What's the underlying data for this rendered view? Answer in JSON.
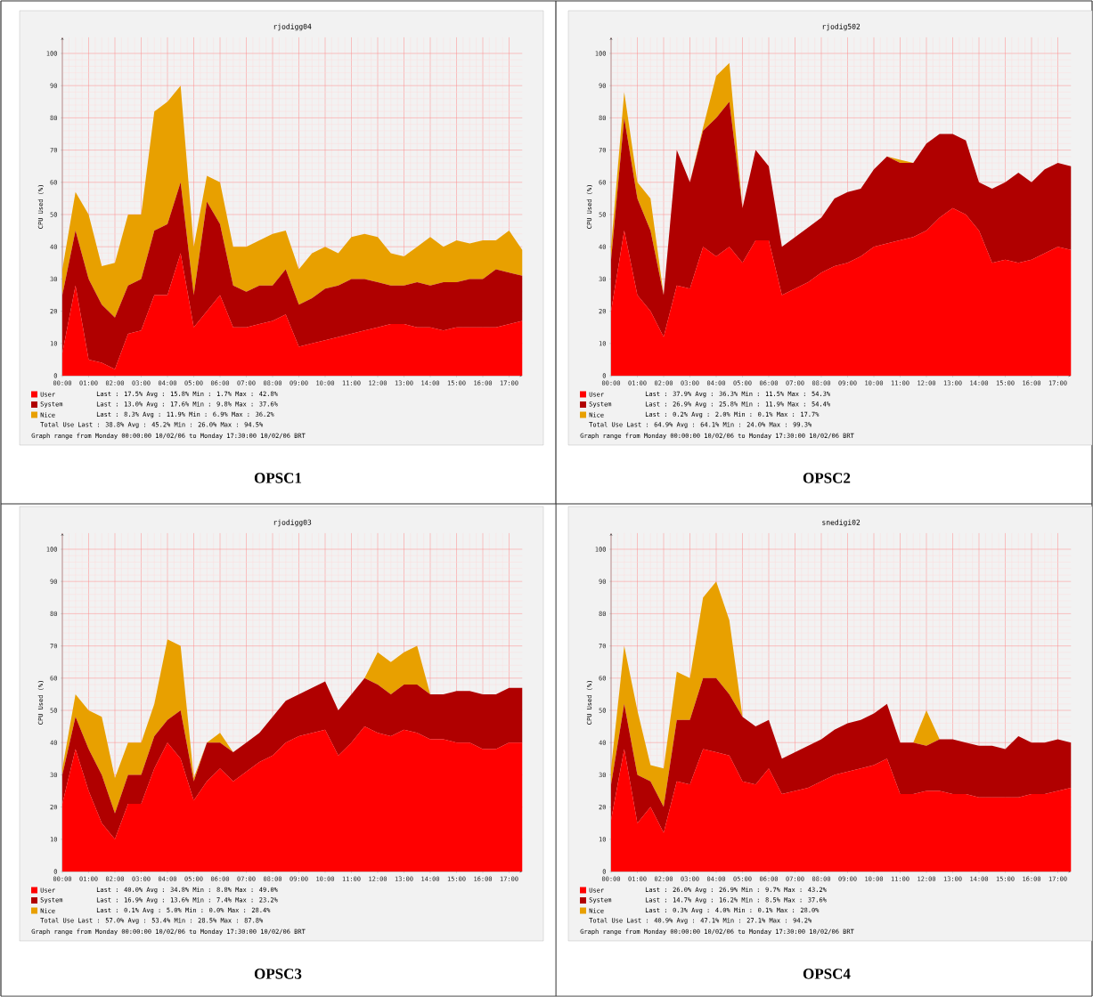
{
  "chart_data": [
    {
      "type": "area",
      "stacked": true,
      "title": "rjodigg04",
      "ylabel": "CPU Used (%)",
      "x": [
        0,
        0.5,
        1,
        1.5,
        2,
        2.5,
        3,
        3.5,
        4,
        4.5,
        5,
        5.5,
        6,
        6.5,
        7,
        7.5,
        8,
        8.5,
        9,
        9.5,
        10,
        10.5,
        11,
        11.5,
        12,
        12.5,
        13,
        13.5,
        14,
        14.5,
        15,
        15.5,
        16,
        16.5,
        17,
        17.5
      ],
      "series": [
        {
          "name": "User",
          "color": "#ff0000",
          "values": [
            7,
            28,
            5,
            4,
            2,
            13,
            14,
            25,
            25,
            38,
            15,
            20,
            25,
            15,
            15,
            16,
            17,
            19,
            9,
            10,
            11,
            12,
            13,
            14,
            15,
            16,
            16,
            15,
            15,
            14,
            15,
            15,
            15,
            15,
            16,
            17
          ]
        },
        {
          "name": "System",
          "color": "#b00000",
          "values": [
            18,
            17,
            25,
            18,
            16,
            15,
            16,
            20,
            22,
            22,
            10,
            34,
            22,
            13,
            11,
            12,
            11,
            14,
            13,
            14,
            16,
            16,
            17,
            16,
            14,
            12,
            12,
            14,
            13,
            15,
            14,
            15,
            15,
            18,
            16,
            14
          ]
        },
        {
          "name": "Nice",
          "color": "#e8a000",
          "values": [
            8,
            12,
            20,
            12,
            17,
            22,
            20,
            37,
            38,
            30,
            15,
            8,
            13,
            12,
            14,
            14,
            16,
            12,
            11,
            14,
            13,
            10,
            13,
            14,
            14,
            10,
            9,
            11,
            15,
            11,
            13,
            11,
            12,
            9,
            13,
            8
          ]
        }
      ],
      "xlim": [
        0,
        17.5
      ],
      "ylim": [
        0,
        105
      ],
      "xticks": [
        {
          "value": 0,
          "label": "00:00"
        },
        {
          "value": 1,
          "label": "01:00"
        },
        {
          "value": 2,
          "label": "02:00"
        },
        {
          "value": 3,
          "label": "03:00"
        },
        {
          "value": 4,
          "label": "04:00"
        },
        {
          "value": 5,
          "label": "05:00"
        },
        {
          "value": 6,
          "label": "06:00"
        },
        {
          "value": 7,
          "label": "07:00"
        },
        {
          "value": 8,
          "label": "08:00"
        },
        {
          "value": 9,
          "label": "09:00"
        },
        {
          "value": 10,
          "label": "10:00"
        },
        {
          "value": 11,
          "label": "11:00"
        },
        {
          "value": 12,
          "label": "12:00"
        },
        {
          "value": 13,
          "label": "13:00"
        },
        {
          "value": 14,
          "label": "14:00"
        },
        {
          "value": 15,
          "label": "15:00"
        },
        {
          "value": 16,
          "label": "16:00"
        },
        {
          "value": 17,
          "label": "17:00"
        }
      ],
      "yticks": [
        0,
        10,
        20,
        30,
        40,
        50,
        60,
        70,
        80,
        90,
        100
      ],
      "grid": true,
      "legend": "bottom",
      "annotations": [
        "Last : 17.5%  Avg : 15.8%  Min : 1.7%  Max : 42.8%",
        "Last : 13.0%  Avg : 17.6%  Min : 9.8%  Max : 37.6%",
        "Last : 8.3%  Avg : 11.9%  Min : 6.9%  Max : 36.2%",
        "Total Use  Last : 38.8%  Avg : 45.2%  Min : 26.0%  Max : 94.5%",
        "Graph range from Monday 00:00:00 10/02/06 to Monday 17:30:00 10/02/06 BRT",
        "OPSC1"
      ]
    },
    {
      "type": "area",
      "stacked": true,
      "title": "rjodig502",
      "ylabel": "CPU Used (%)",
      "x": [
        0,
        0.5,
        1,
        1.5,
        2,
        2.5,
        3,
        3.5,
        4,
        4.5,
        5,
        5.5,
        6,
        6.5,
        7,
        7.5,
        8,
        8.5,
        9,
        9.5,
        10,
        10.5,
        11,
        11.5,
        12,
        12.5,
        13,
        13.5,
        14,
        14.5,
        15,
        15.5,
        16,
        16.5,
        17,
        17.5
      ],
      "series": [
        {
          "name": "User",
          "color": "#ff0000",
          "values": [
            20,
            45,
            25,
            20,
            12,
            28,
            27,
            40,
            37,
            40,
            35,
            42,
            42,
            25,
            27,
            29,
            32,
            34,
            35,
            37,
            40,
            41,
            42,
            43,
            45,
            49,
            52,
            50,
            45,
            35,
            36,
            35,
            36,
            38,
            40,
            39
          ]
        },
        {
          "name": "System",
          "color": "#b00000",
          "values": [
            16,
            35,
            30,
            25,
            13,
            42,
            33,
            36,
            43,
            45,
            17,
            28,
            23,
            15,
            16,
            17,
            17,
            21,
            22,
            21,
            24,
            27,
            24,
            23,
            27,
            26,
            23,
            23,
            15,
            23,
            24,
            28,
            24,
            26,
            26,
            26
          ]
        },
        {
          "name": "Nice",
          "color": "#e8a000",
          "values": [
            4,
            8,
            5,
            10,
            0,
            0,
            0,
            1,
            13,
            12,
            0,
            0,
            0,
            0,
            0,
            0,
            0,
            0,
            0,
            0,
            0,
            0,
            1,
            0,
            0,
            0,
            0,
            0,
            0,
            0,
            0,
            0,
            0,
            0,
            0,
            0
          ]
        }
      ],
      "xlim": [
        0,
        17.5
      ],
      "ylim": [
        0,
        105
      ],
      "xticks": [
        {
          "value": 0,
          "label": "00:00"
        },
        {
          "value": 1,
          "label": "01:00"
        },
        {
          "value": 2,
          "label": "02:00"
        },
        {
          "value": 3,
          "label": "03:00"
        },
        {
          "value": 4,
          "label": "04:00"
        },
        {
          "value": 5,
          "label": "05:00"
        },
        {
          "value": 6,
          "label": "06:00"
        },
        {
          "value": 7,
          "label": "07:00"
        },
        {
          "value": 8,
          "label": "08:00"
        },
        {
          "value": 9,
          "label": "09:00"
        },
        {
          "value": 10,
          "label": "10:00"
        },
        {
          "value": 11,
          "label": "11:00"
        },
        {
          "value": 12,
          "label": "12:00"
        },
        {
          "value": 13,
          "label": "13:00"
        },
        {
          "value": 14,
          "label": "14:00"
        },
        {
          "value": 15,
          "label": "15:00"
        },
        {
          "value": 16,
          "label": "16:00"
        },
        {
          "value": 17,
          "label": "17:00"
        }
      ],
      "yticks": [
        0,
        10,
        20,
        30,
        40,
        50,
        60,
        70,
        80,
        90,
        100
      ],
      "grid": true,
      "legend": "bottom",
      "annotations": [
        "Last : 37.9%  Avg : 36.3%  Min : 11.5%  Max : 54.3%",
        "Last : 26.9%  Avg : 25.8%  Min : 11.9%  Max : 54.4%",
        "Last : 0.2%  Avg : 2.0%  Min : 0.1%  Max : 17.7%",
        "Total Use  Last : 64.9%  Avg : 64.1%  Min : 24.0%  Max : 99.3%",
        "Graph range from Monday 00:00:00 10/02/06 to Monday 17:30:00 10/02/06 BRT",
        "OPSC2"
      ]
    },
    {
      "type": "area",
      "stacked": true,
      "title": "rjodigg03",
      "ylabel": "CPU Used (%)",
      "x": [
        0,
        0.5,
        1,
        1.5,
        2,
        2.5,
        3,
        3.5,
        4,
        4.5,
        5,
        5.5,
        6,
        6.5,
        7,
        7.5,
        8,
        8.5,
        9,
        9.5,
        10,
        10.5,
        11,
        11.5,
        12,
        12.5,
        13,
        13.5,
        14,
        14.5,
        15,
        15.5,
        16,
        16.5,
        17,
        17.5
      ],
      "series": [
        {
          "name": "User",
          "color": "#ff0000",
          "values": [
            21,
            38,
            25,
            15,
            10,
            21,
            21,
            32,
            40,
            35,
            22,
            28,
            32,
            28,
            31,
            34,
            36,
            40,
            42,
            43,
            44,
            36,
            40,
            45,
            43,
            42,
            44,
            43,
            41,
            41,
            40,
            40,
            38,
            38,
            40,
            40
          ]
        },
        {
          "name": "System",
          "color": "#b00000",
          "values": [
            9,
            10,
            13,
            15,
            8,
            9,
            9,
            10,
            7,
            15,
            6,
            12,
            8,
            9,
            9,
            9,
            12,
            13,
            13,
            14,
            15,
            14,
            15,
            15,
            15,
            13,
            14,
            15,
            14,
            14,
            16,
            16,
            17,
            17,
            17,
            17
          ]
        },
        {
          "name": "Nice",
          "color": "#e8a000",
          "values": [
            2,
            7,
            12,
            18,
            11,
            10,
            10,
            10,
            25,
            20,
            1,
            0,
            3,
            0,
            0,
            0,
            0,
            0,
            0,
            0,
            0,
            0,
            0,
            0,
            10,
            10,
            10,
            12,
            0,
            0,
            0,
            0,
            0,
            0,
            0,
            0
          ]
        }
      ],
      "xlim": [
        0,
        17.5
      ],
      "ylim": [
        0,
        105
      ],
      "xticks": [
        {
          "value": 0,
          "label": "00:00"
        },
        {
          "value": 1,
          "label": "01:00"
        },
        {
          "value": 2,
          "label": "02:00"
        },
        {
          "value": 3,
          "label": "03:00"
        },
        {
          "value": 4,
          "label": "04:00"
        },
        {
          "value": 5,
          "label": "05:00"
        },
        {
          "value": 6,
          "label": "06:00"
        },
        {
          "value": 7,
          "label": "07:00"
        },
        {
          "value": 8,
          "label": "08:00"
        },
        {
          "value": 9,
          "label": "09:00"
        },
        {
          "value": 10,
          "label": "10:00"
        },
        {
          "value": 11,
          "label": "11:00"
        },
        {
          "value": 12,
          "label": "12:00"
        },
        {
          "value": 13,
          "label": "13:00"
        },
        {
          "value": 14,
          "label": "14:00"
        },
        {
          "value": 15,
          "label": "15:00"
        },
        {
          "value": 16,
          "label": "16:00"
        },
        {
          "value": 17,
          "label": "17:00"
        }
      ],
      "yticks": [
        0,
        10,
        20,
        30,
        40,
        50,
        60,
        70,
        80,
        90,
        100
      ],
      "grid": true,
      "legend": "bottom",
      "annotations": [
        "Last : 40.0%  Avg : 34.8%  Min : 8.8%  Max : 49.0%",
        "Last : 16.9%  Avg : 13.6%  Min : 7.4%  Max : 23.2%",
        "Last : 0.1%  Avg : 5.0%  Min : 0.0%  Max : 28.4%",
        "Total Use  Last : 57.0%  Avg : 53.4%  Min : 28.5%  Max : 87.8%",
        "Graph range from Monday 00:00:00 10/02/06 to Monday 17:30:00 10/02/06 BRT",
        "OPSC3"
      ]
    },
    {
      "type": "area",
      "stacked": true,
      "title": "snedigi02",
      "ylabel": "CPU Used (%)",
      "x": [
        0,
        0.5,
        1,
        1.5,
        2,
        2.5,
        3,
        3.5,
        4,
        4.5,
        5,
        5.5,
        6,
        6.5,
        7,
        7.5,
        8,
        8.5,
        9,
        9.5,
        10,
        10.5,
        11,
        11.5,
        12,
        12.5,
        13,
        13.5,
        14,
        14.5,
        15,
        15.5,
        16,
        16.5,
        17,
        17.5
      ],
      "series": [
        {
          "name": "User",
          "color": "#ff0000",
          "values": [
            16,
            38,
            15,
            20,
            12,
            28,
            27,
            38,
            37,
            36,
            28,
            27,
            32,
            24,
            25,
            26,
            28,
            30,
            31,
            32,
            33,
            35,
            24,
            24,
            25,
            25,
            24,
            24,
            23,
            23,
            23,
            23,
            24,
            24,
            25,
            26
          ]
        },
        {
          "name": "System",
          "color": "#b00000",
          "values": [
            11,
            14,
            15,
            8,
            8,
            19,
            20,
            22,
            23,
            19,
            20,
            18,
            15,
            11,
            12,
            13,
            13,
            14,
            15,
            15,
            16,
            17,
            16,
            16,
            14,
            16,
            17,
            16,
            16,
            16,
            15,
            19,
            16,
            16,
            16,
            14
          ]
        },
        {
          "name": "Nice",
          "color": "#e8a000",
          "values": [
            5,
            18,
            20,
            5,
            12,
            15,
            13,
            25,
            30,
            23,
            0,
            0,
            0,
            0,
            0,
            0,
            0,
            0,
            0,
            0,
            0,
            0,
            0,
            0,
            11,
            0,
            0,
            0,
            0,
            0,
            0,
            0,
            0,
            0,
            0,
            0
          ]
        }
      ],
      "xlim": [
        0,
        17.5
      ],
      "ylim": [
        0,
        105
      ],
      "xticks": [
        {
          "value": 0,
          "label": "00:00"
        },
        {
          "value": 1,
          "label": "01:00"
        },
        {
          "value": 2,
          "label": "02:00"
        },
        {
          "value": 3,
          "label": "03:00"
        },
        {
          "value": 4,
          "label": "04:00"
        },
        {
          "value": 5,
          "label": "05:00"
        },
        {
          "value": 6,
          "label": "06:00"
        },
        {
          "value": 7,
          "label": "07:00"
        },
        {
          "value": 8,
          "label": "08:00"
        },
        {
          "value": 9,
          "label": "09:00"
        },
        {
          "value": 10,
          "label": "10:00"
        },
        {
          "value": 11,
          "label": "11:00"
        },
        {
          "value": 12,
          "label": "12:00"
        },
        {
          "value": 13,
          "label": "13:00"
        },
        {
          "value": 14,
          "label": "14:00"
        },
        {
          "value": 15,
          "label": "15:00"
        },
        {
          "value": 16,
          "label": "16:00"
        },
        {
          "value": 17,
          "label": "17:00"
        }
      ],
      "yticks": [
        0,
        10,
        20,
        30,
        40,
        50,
        60,
        70,
        80,
        90,
        100
      ],
      "grid": true,
      "legend": "bottom",
      "annotations": [
        "Last : 26.0%  Avg : 26.9%  Min : 9.7%  Max : 43.2%",
        "Last : 14.7%  Avg : 16.2%  Min : 8.5%  Max : 37.6%",
        "Last : 0.3%  Avg : 4.0%  Min : 0.1%  Max : 28.0%",
        "Total Use  Last : 40.9%  Avg : 47.1%  Min : 27.1%  Max : 94.2%",
        "Graph range from Monday 00:00:00 10/02/06 to Monday 17:30:00 10/02/06 BRT",
        "OPSC4"
      ]
    }
  ]
}
